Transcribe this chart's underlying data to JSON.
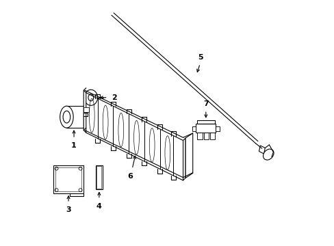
{
  "bg_color": "#ffffff",
  "line_color": "#000000",
  "line_width": 0.8,
  "fig_width": 4.89,
  "fig_height": 3.6,
  "dpi": 100
}
